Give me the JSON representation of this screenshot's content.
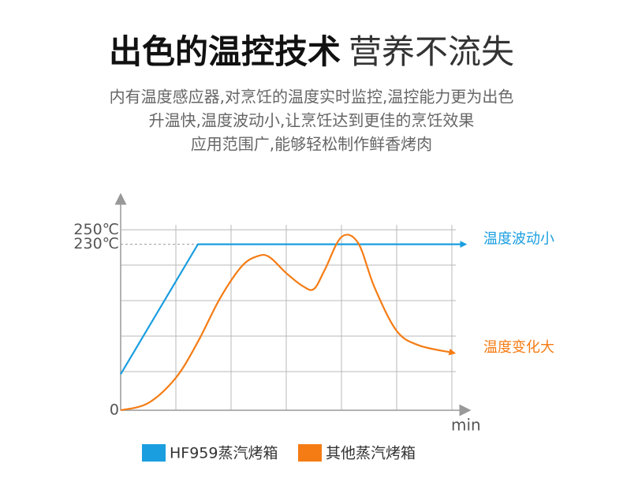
{
  "chart_data": {
    "type": "line",
    "title": "出色的温控技术",
    "title_light": "营养不流失",
    "subtitle": [
      "内有温度感应器,对烹饪的温度实时监控,温控能力更为出色",
      "升温快,温度波动小,让烹饪达到更佳的烹饪效果",
      "应用范围广,能够轻松制作鲜香烤肉"
    ],
    "x_label": "min",
    "xlim": [
      0,
      62
    ],
    "ylim": [
      0,
      270
    ],
    "yticks": [
      {
        "value": 0,
        "label": "0"
      },
      {
        "value": 230,
        "label": "230℃"
      },
      {
        "value": 250,
        "label": "250℃"
      }
    ],
    "grid": true,
    "series": [
      {
        "name": "HF959蒸汽烤箱",
        "color": "#1a9ee0",
        "annotation": "温度波动小",
        "x": [
          0,
          14,
          62
        ],
        "values": [
          50,
          230,
          230
        ]
      },
      {
        "name": "其他蒸汽烤箱",
        "color": "#f57c14",
        "annotation": "温度变化大",
        "x": [
          0,
          5,
          10,
          14,
          18,
          22,
          25,
          27,
          30,
          33,
          35,
          37,
          40,
          43,
          46,
          50,
          54,
          60
        ],
        "values": [
          0,
          10,
          45,
          95,
          155,
          200,
          214,
          212,
          190,
          172,
          168,
          195,
          240,
          232,
          170,
          110,
          90,
          80
        ]
      }
    ]
  }
}
